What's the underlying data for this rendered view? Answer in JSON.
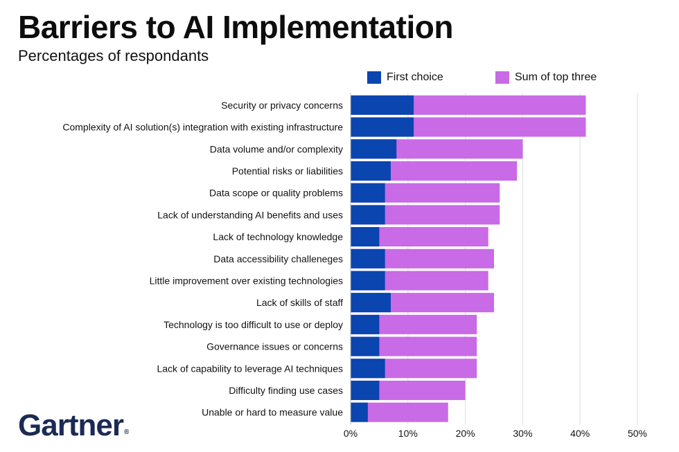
{
  "chart_data": {
    "type": "bar",
    "orientation": "horizontal",
    "title": "Barriers to AI Implementation",
    "subtitle": "Percentages of respondants",
    "categories": [
      "Security or privacy concerns",
      "Complexity of AI solution(s) integration with existing infrastructure",
      "Data volume and/or complexity",
      "Potential risks or liabilities",
      "Data scope or quality problems",
      "Lack of understanding AI benefits and uses",
      "Lack of technology knowledge",
      "Data accessibility challeneges",
      "Little improvement over existing technologies",
      "Lack of skills of staff",
      "Technology is too difficult to use or deploy",
      "Governance issues or concerns",
      "Lack of capability to leverage AI techniques",
      "Difficulty finding use cases",
      "Unable or hard to measure value"
    ],
    "series": [
      {
        "name": "First choice",
        "color": "#0a45b0",
        "values": [
          11,
          11,
          8,
          7,
          6,
          6,
          5,
          6,
          6,
          7,
          5,
          5,
          6,
          5,
          3
        ]
      },
      {
        "name": "Sum of top three",
        "color": "#c96ae6",
        "values": [
          41,
          41,
          30,
          29,
          26,
          26,
          24,
          25,
          24,
          25,
          22,
          22,
          22,
          20,
          17
        ]
      }
    ],
    "xlim": [
      0,
      50
    ],
    "xticks": [
      "0%",
      "10%",
      "20%",
      "30%",
      "40%",
      "50%"
    ],
    "grid": true,
    "legend_position": "top"
  },
  "branding": {
    "logo_text": "Gartner",
    "logo_mark": "®"
  }
}
